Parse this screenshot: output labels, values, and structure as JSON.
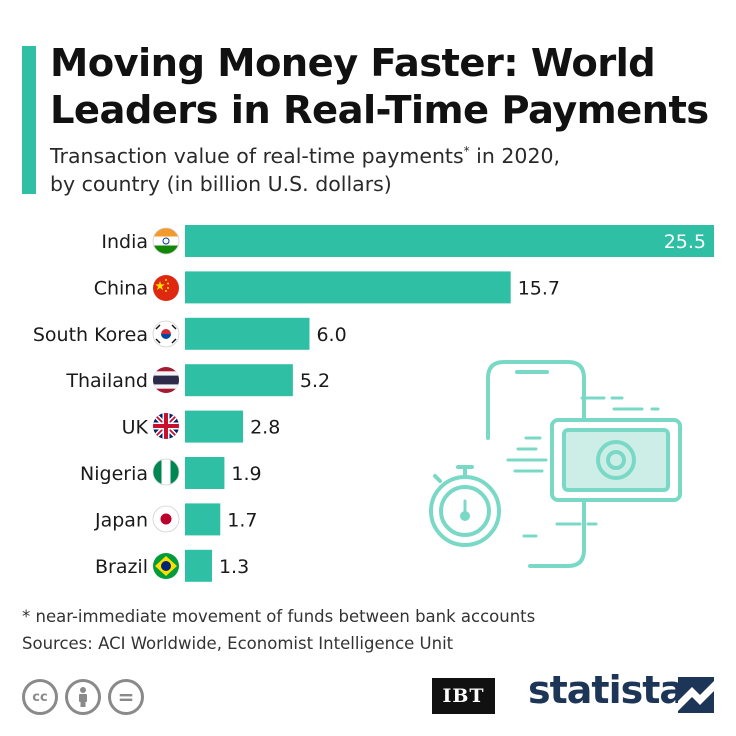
{
  "header": {
    "title": "Moving Money Faster: World Leaders in Real-Time Payments",
    "subtitle_main": "Transaction value of real-time payments",
    "subtitle_star": "*",
    "subtitle_rest": " in 2020,",
    "subtitle_line2": "by country (in billion U.S. dollars)"
  },
  "chart_data": {
    "type": "bar",
    "orientation": "horizontal",
    "categories": [
      "India",
      "China",
      "South Korea",
      "Thailand",
      "UK",
      "Nigeria",
      "Japan",
      "Brazil"
    ],
    "values": [
      25.5,
      15.7,
      6.0,
      5.2,
      2.8,
      1.9,
      1.7,
      1.3
    ],
    "value_labels": [
      "25.5",
      "15.7",
      "6.0",
      "5.2",
      "2.8",
      "1.9",
      "1.7",
      "1.3"
    ],
    "xlim": [
      0,
      25.5
    ],
    "grid": false,
    "bar_color": "#2ebfa5"
  },
  "footer": {
    "footnote": "* near-immediate movement of funds between bank accounts",
    "sources": "Sources: ACI Worldwide, Economist Intelligence Unit",
    "cc_icons": [
      "cc-icon",
      "attribution-icon",
      "no-derivatives-icon"
    ],
    "cc_text": "cc",
    "nd_text": "=",
    "ibt_logo": "IBT",
    "brand": "statista"
  },
  "colors": {
    "accent": "#2ebfa5",
    "illustration": "#7ad9c6",
    "brand": "#1d3557"
  }
}
